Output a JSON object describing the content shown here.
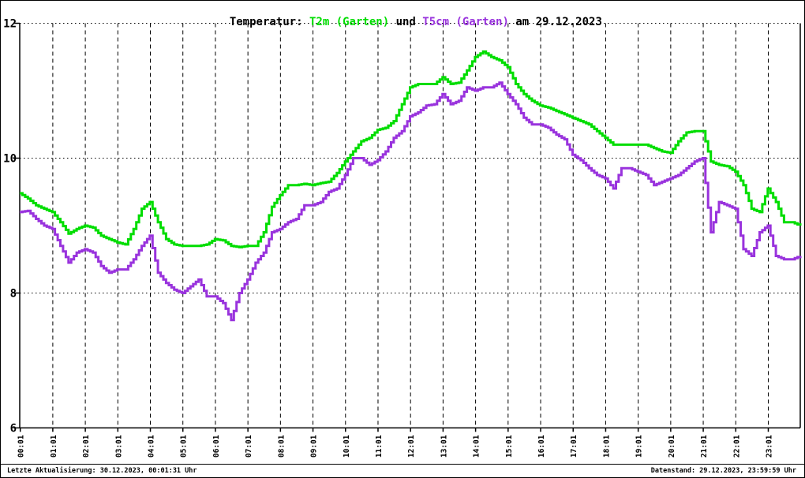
{
  "title": {
    "prefix": "Temperatur: ",
    "series1": "T2m (Garten)",
    "connector": " und ",
    "series2": "T5cm (Garten)",
    "suffix": " am 29.12.2023"
  },
  "footer": {
    "left": "Letzte Aktualisierung: 30.12.2023, 00:01:31 Uhr",
    "right": "Datenstand: 29.12.2023, 23:59:59 Uhr"
  },
  "colors": {
    "t2m": "#00dd00",
    "t5cm": "#9933dd",
    "axis": "#000000",
    "background": "#ffffff"
  },
  "chart_data": {
    "type": "line",
    "step": true,
    "title": "Temperatur: T2m (Garten) und T5cm (Garten) am 29.12.2023",
    "ylim": [
      6,
      12
    ],
    "y_ticks": [
      6,
      8,
      10,
      12
    ],
    "y_gridlines": [
      8,
      10,
      12
    ],
    "x_start_hour": 0,
    "x_step_minutes": 15,
    "x_tick_labels": [
      "00:01",
      "01:01",
      "02:01",
      "03:01",
      "04:01",
      "05:01",
      "06:01",
      "07:01",
      "08:01",
      "09:01",
      "10:01",
      "11:01",
      "12:01",
      "13:01",
      "14:01",
      "15:01",
      "16:01",
      "17:01",
      "18:01",
      "19:01",
      "20:01",
      "21:01",
      "22:01",
      "23:01"
    ],
    "grid": true,
    "legend_position": "in-title",
    "series": [
      {
        "name": "T2m (Garten)",
        "color_key": "t2m",
        "values": [
          9.48,
          9.4,
          9.3,
          9.25,
          9.2,
          9.05,
          8.88,
          8.95,
          9.0,
          8.97,
          8.85,
          8.8,
          8.75,
          8.72,
          8.95,
          9.25,
          9.35,
          9.05,
          8.8,
          8.72,
          8.7,
          8.7,
          8.7,
          8.72,
          8.8,
          8.78,
          8.7,
          8.68,
          8.7,
          8.7,
          8.9,
          9.28,
          9.45,
          9.6,
          9.6,
          9.62,
          9.6,
          9.63,
          9.65,
          9.78,
          9.95,
          10.1,
          10.25,
          10.3,
          10.42,
          10.45,
          10.55,
          10.8,
          11.05,
          11.1,
          11.1,
          11.1,
          11.2,
          11.1,
          11.12,
          11.3,
          11.5,
          11.58,
          11.5,
          11.45,
          11.35,
          11.1,
          10.95,
          10.85,
          10.78,
          10.75,
          10.7,
          10.65,
          10.6,
          10.55,
          10.5,
          10.4,
          10.3,
          10.2,
          10.2,
          10.2,
          10.2,
          10.2,
          10.15,
          10.1,
          10.08,
          10.25,
          10.38,
          10.4,
          10.4,
          9.95,
          9.9,
          9.88,
          9.8,
          9.6,
          9.25,
          9.2,
          9.55,
          9.35,
          9.05,
          9.05,
          9.0
        ]
      },
      {
        "name": "T5cm (Garten)",
        "color_key": "t5cm",
        "values": [
          9.2,
          9.22,
          9.1,
          9.0,
          8.95,
          8.7,
          8.45,
          8.6,
          8.65,
          8.6,
          8.4,
          8.3,
          8.35,
          8.35,
          8.5,
          8.7,
          8.85,
          8.3,
          8.15,
          8.05,
          8.0,
          8.1,
          8.2,
          7.95,
          7.95,
          7.85,
          7.6,
          8.0,
          8.2,
          8.45,
          8.6,
          8.9,
          8.95,
          9.05,
          9.1,
          9.3,
          9.3,
          9.35,
          9.5,
          9.55,
          9.75,
          10.0,
          10.0,
          9.9,
          9.97,
          10.1,
          10.3,
          10.4,
          10.62,
          10.68,
          10.78,
          10.8,
          10.95,
          10.8,
          10.85,
          11.05,
          11.0,
          11.05,
          11.05,
          11.12,
          10.95,
          10.8,
          10.6,
          10.5,
          10.5,
          10.45,
          10.35,
          10.28,
          10.05,
          9.97,
          9.85,
          9.75,
          9.7,
          9.55,
          9.85,
          9.85,
          9.8,
          9.75,
          9.6,
          9.65,
          9.7,
          9.75,
          9.85,
          9.95,
          10.0,
          8.9,
          9.35,
          9.3,
          9.25,
          8.65,
          8.55,
          8.9,
          9.0,
          8.55,
          8.5,
          8.5,
          8.55
        ]
      }
    ]
  }
}
